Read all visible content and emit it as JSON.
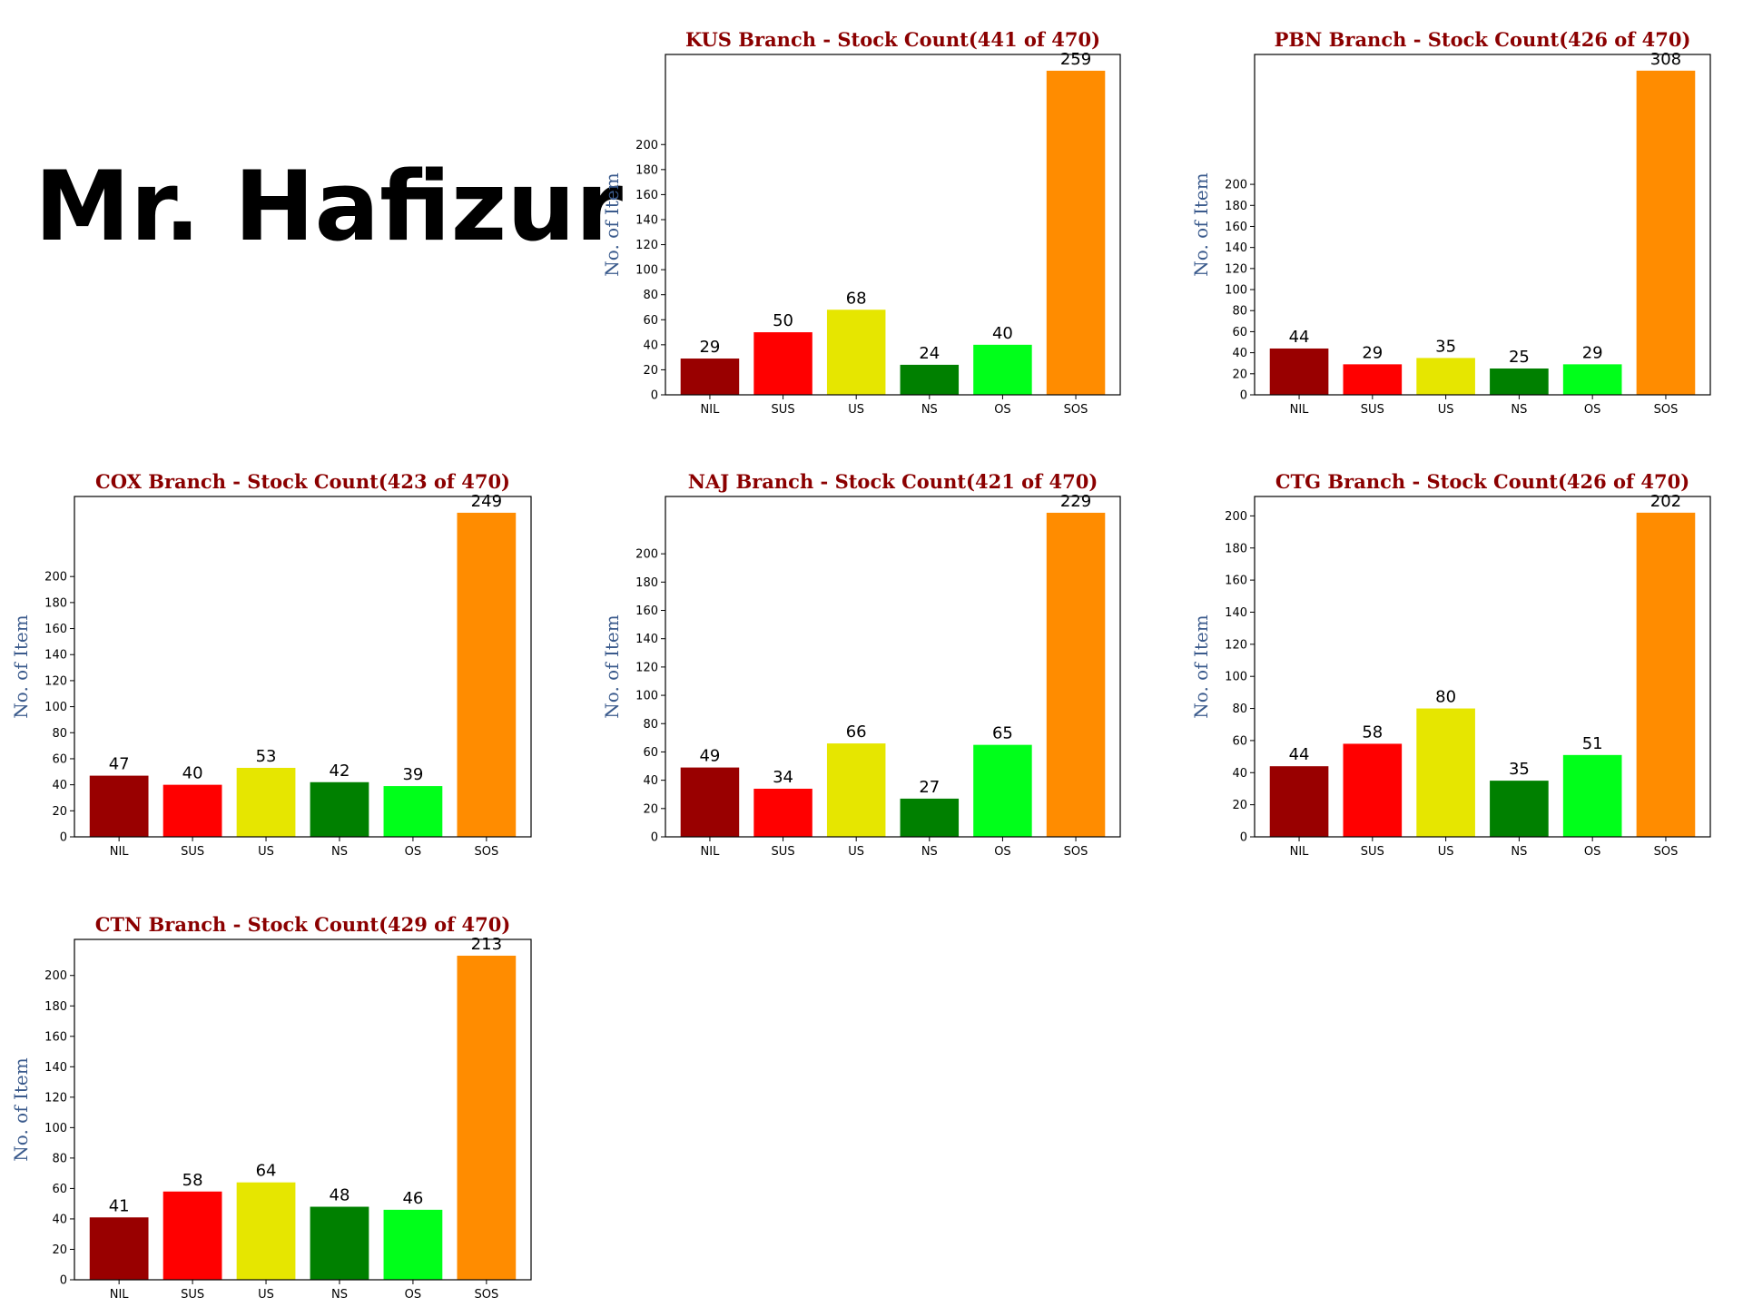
{
  "header": {
    "person_name": "Mr. Hafizur"
  },
  "chart_data": [
    {
      "type": "bar",
      "title": "KUS Branch - Stock Count(441 of 470)",
      "ylabel": "No. of Item",
      "categories": [
        "NIL",
        "SUS",
        "US",
        "NS",
        "OS",
        "SOS"
      ],
      "values": [
        29,
        50,
        68,
        24,
        40,
        259
      ],
      "yticks": [
        0,
        20,
        40,
        60,
        80,
        100,
        120,
        140,
        160,
        180,
        200
      ],
      "ylim": [
        0,
        272
      ],
      "colors": [
        "#990000",
        "#ff0000",
        "#e6e600",
        "#008000",
        "#00ff1a",
        "#ff8c00"
      ]
    },
    {
      "type": "bar",
      "title": "PBN Branch - Stock Count(426 of 470)",
      "ylabel": "No. of Item",
      "categories": [
        "NIL",
        "SUS",
        "US",
        "NS",
        "OS",
        "SOS"
      ],
      "values": [
        44,
        29,
        35,
        25,
        29,
        308
      ],
      "yticks": [
        0,
        20,
        40,
        60,
        80,
        100,
        120,
        140,
        160,
        180,
        200
      ],
      "ylim": [
        0,
        323.4
      ],
      "colors": [
        "#990000",
        "#ff0000",
        "#e6e600",
        "#008000",
        "#00ff1a",
        "#ff8c00"
      ]
    },
    {
      "type": "bar",
      "title": "COX Branch - Stock Count(423 of 470)",
      "ylabel": "No. of Item",
      "categories": [
        "NIL",
        "SUS",
        "US",
        "NS",
        "OS",
        "SOS"
      ],
      "values": [
        47,
        40,
        53,
        42,
        39,
        249
      ],
      "yticks": [
        0,
        20,
        40,
        60,
        80,
        100,
        120,
        140,
        160,
        180,
        200
      ],
      "ylim": [
        0,
        261.5
      ],
      "colors": [
        "#990000",
        "#ff0000",
        "#e6e600",
        "#008000",
        "#00ff1a",
        "#ff8c00"
      ]
    },
    {
      "type": "bar",
      "title": "NAJ Branch - Stock Count(421 of 470)",
      "ylabel": "No. of Item",
      "categories": [
        "NIL",
        "SUS",
        "US",
        "NS",
        "OS",
        "SOS"
      ],
      "values": [
        49,
        34,
        66,
        27,
        65,
        229
      ],
      "yticks": [
        0,
        20,
        40,
        60,
        80,
        100,
        120,
        140,
        160,
        180,
        200
      ],
      "ylim": [
        0,
        240.5
      ],
      "colors": [
        "#990000",
        "#ff0000",
        "#e6e600",
        "#008000",
        "#00ff1a",
        "#ff8c00"
      ]
    },
    {
      "type": "bar",
      "title": "CTG Branch - Stock Count(426 of 470)",
      "ylabel": "No. of Item",
      "categories": [
        "NIL",
        "SUS",
        "US",
        "NS",
        "OS",
        "SOS"
      ],
      "values": [
        44,
        58,
        80,
        35,
        51,
        202
      ],
      "yticks": [
        0,
        20,
        40,
        60,
        80,
        100,
        120,
        140,
        160,
        180,
        200
      ],
      "ylim": [
        0,
        212.1
      ],
      "colors": [
        "#990000",
        "#ff0000",
        "#e6e600",
        "#008000",
        "#00ff1a",
        "#ff8c00"
      ]
    },
    {
      "type": "bar",
      "title": "CTN Branch - Stock Count(429 of 470)",
      "ylabel": "No. of Item",
      "categories": [
        "NIL",
        "SUS",
        "US",
        "NS",
        "OS",
        "SOS"
      ],
      "values": [
        41,
        58,
        64,
        48,
        46,
        213
      ],
      "yticks": [
        0,
        20,
        40,
        60,
        80,
        100,
        120,
        140,
        160,
        180,
        200
      ],
      "ylim": [
        0,
        223.7
      ],
      "colors": [
        "#990000",
        "#ff0000",
        "#e6e600",
        "#008000",
        "#00ff1a",
        "#ff8c00"
      ]
    }
  ]
}
